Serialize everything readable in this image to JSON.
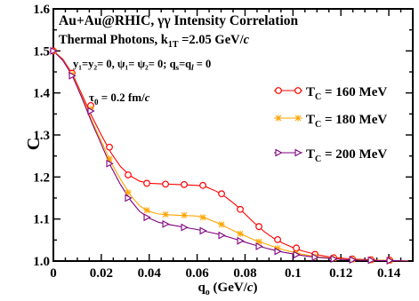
{
  "chart_data": {
    "type": "line",
    "title_lines": [
      "Au+Au@RHIC,  γγ Intensity  Correlation",
      "Thermal Photons, k",
      "1T",
      " =2.05 GeV/",
      "c"
    ],
    "annotations": {
      "rapidity": "y",
      "rapidity_text": "y₁=y₂= 0,  ψ₁= ψ₂= 0;  q",
      "rapidity_tail": "s",
      "rapidity_eq": "=q",
      "rapidity_l": "l",
      "rapidity_end": " = 0",
      "tau_prefix": "τ",
      "tau_sub": "0",
      "tau_value": " = 0.2 fm/",
      "tau_unit": "c"
    },
    "xlabel_main": "q",
    "xlabel_sub": "o",
    "xlabel_unit": " (GeV/",
    "xlabel_c": "c",
    "xlabel_close": ")",
    "ylabel": "C",
    "xlim": [
      0,
      0.15
    ],
    "ylim": [
      1.0,
      1.6
    ],
    "x_ticks": [
      {
        "value": 0,
        "label": "0"
      },
      {
        "value": 0.02,
        "label": "0.02"
      },
      {
        "value": 0.04,
        "label": "0.04"
      },
      {
        "value": 0.06,
        "label": "0.06"
      },
      {
        "value": 0.08,
        "label": "0.08"
      },
      {
        "value": 0.1,
        "label": "0.1"
      },
      {
        "value": 0.12,
        "label": "0.12"
      },
      {
        "value": 0.14,
        "label": "0.14"
      }
    ],
    "y_ticks": [
      {
        "value": 1.0,
        "label": "1.0"
      },
      {
        "value": 1.1,
        "label": "1.1"
      },
      {
        "value": 1.2,
        "label": "1.2"
      },
      {
        "value": 1.3,
        "label": "1.3"
      },
      {
        "value": 1.4,
        "label": "1.4"
      },
      {
        "value": 1.5,
        "label": "1.5"
      },
      {
        "value": 1.6,
        "label": "1.6"
      }
    ],
    "legend_placement": "right",
    "series": [
      {
        "name": "T",
        "name_sub": "C",
        "name_rest": " = 160 MeV",
        "color": "#ff0000",
        "marker": "circle",
        "x": [
          0,
          0.004,
          0.008,
          0.012,
          0.016,
          0.02,
          0.024,
          0.028,
          0.032,
          0.036,
          0.04,
          0.044,
          0.048,
          0.052,
          0.056,
          0.06,
          0.064,
          0.068,
          0.072,
          0.076,
          0.08,
          0.084,
          0.088,
          0.092,
          0.096,
          0.1,
          0.104,
          0.108,
          0.112,
          0.116,
          0.12,
          0.124,
          0.128,
          0.132,
          0.136,
          0.14,
          0.144,
          0.148
        ],
        "y": [
          1.5,
          1.48,
          1.445,
          1.395,
          1.345,
          1.3,
          1.258,
          1.225,
          1.203,
          1.19,
          1.185,
          1.184,
          1.183,
          1.182,
          1.181,
          1.18,
          1.176,
          1.166,
          1.152,
          1.134,
          1.112,
          1.09,
          1.07,
          1.054,
          1.042,
          1.032,
          1.024,
          1.018,
          1.013,
          1.009,
          1.007,
          1.005,
          1.004,
          1.003,
          1.002,
          1.001,
          1.001,
          1.001
        ],
        "marker_x": [
          0,
          0.0078,
          0.0156,
          0.0234,
          0.0312,
          0.039,
          0.0468,
          0.0546,
          0.0624,
          0.0702,
          0.078,
          0.0858,
          0.0936,
          0.1014,
          0.1092,
          0.117,
          0.1248,
          0.1326,
          0.1404
        ],
        "marker_y": [
          1.5,
          1.447,
          1.37,
          1.271,
          1.205,
          1.185,
          1.183,
          1.182,
          1.18,
          1.16,
          1.123,
          1.082,
          1.051,
          1.031,
          1.016,
          1.008,
          1.005,
          1.003,
          1.002
        ]
      },
      {
        "name": "T",
        "name_sub": "C",
        "name_rest": " = 180 MeV",
        "color": "#ffa500",
        "marker": "cross",
        "x": [
          0,
          0.004,
          0.008,
          0.012,
          0.016,
          0.02,
          0.024,
          0.028,
          0.032,
          0.036,
          0.04,
          0.044,
          0.048,
          0.052,
          0.056,
          0.06,
          0.064,
          0.068,
          0.072,
          0.076,
          0.08,
          0.084,
          0.088,
          0.092,
          0.096,
          0.1,
          0.104,
          0.108,
          0.112,
          0.116,
          0.12,
          0.124,
          0.128,
          0.132,
          0.136,
          0.14,
          0.144,
          0.148
        ],
        "y": [
          1.5,
          1.478,
          1.442,
          1.39,
          1.335,
          1.285,
          1.235,
          1.195,
          1.158,
          1.131,
          1.118,
          1.112,
          1.11,
          1.109,
          1.108,
          1.107,
          1.101,
          1.092,
          1.081,
          1.07,
          1.06,
          1.05,
          1.042,
          1.034,
          1.027,
          1.021,
          1.016,
          1.012,
          1.009,
          1.007,
          1.005,
          1.004,
          1.003,
          1.002,
          1.002,
          1.001,
          1.001,
          1.001
        ],
        "marker_x": [
          0,
          0.0078,
          0.0156,
          0.0234,
          0.0312,
          0.039,
          0.0468,
          0.0546,
          0.0624,
          0.0702,
          0.078,
          0.0858,
          0.0936,
          0.1014,
          0.1092,
          0.117,
          0.1248,
          0.1326,
          0.1404
        ],
        "marker_y": [
          1.5,
          1.444,
          1.362,
          1.243,
          1.163,
          1.121,
          1.111,
          1.109,
          1.104,
          1.087,
          1.065,
          1.046,
          1.03,
          1.019,
          1.011,
          1.006,
          1.004,
          1.002,
          1.001
        ]
      },
      {
        "name": "T",
        "name_sub": "C",
        "name_rest": " = 200 MeV",
        "color": "#800080",
        "marker": "triangle-right",
        "x": [
          0,
          0.004,
          0.008,
          0.012,
          0.016,
          0.02,
          0.024,
          0.028,
          0.032,
          0.036,
          0.04,
          0.044,
          0.048,
          0.052,
          0.056,
          0.06,
          0.064,
          0.068,
          0.072,
          0.076,
          0.08,
          0.084,
          0.088,
          0.092,
          0.096,
          0.1,
          0.104,
          0.108,
          0.112,
          0.116,
          0.12,
          0.124,
          0.128,
          0.132,
          0.136,
          0.14,
          0.144,
          0.148
        ],
        "y": [
          1.5,
          1.477,
          1.44,
          1.387,
          1.33,
          1.278,
          1.225,
          1.182,
          1.146,
          1.118,
          1.102,
          1.092,
          1.087,
          1.083,
          1.079,
          1.075,
          1.07,
          1.065,
          1.059,
          1.052,
          1.045,
          1.038,
          1.032,
          1.026,
          1.021,
          1.017,
          1.013,
          1.01,
          1.008,
          1.006,
          1.004,
          1.003,
          1.002,
          1.002,
          1.001,
          1.001,
          1.001,
          1.0
        ],
        "marker_x": [
          0,
          0.0078,
          0.0156,
          0.0234,
          0.0312,
          0.039,
          0.0468,
          0.0546,
          0.0624,
          0.0702,
          0.078,
          0.0858,
          0.0936,
          0.1014,
          0.1092,
          0.117,
          0.1248,
          0.1326,
          0.1404
        ],
        "marker_y": [
          1.5,
          1.441,
          1.357,
          1.232,
          1.15,
          1.104,
          1.088,
          1.08,
          1.072,
          1.061,
          1.048,
          1.035,
          1.023,
          1.015,
          1.009,
          1.005,
          1.003,
          1.002,
          1.001
        ]
      }
    ]
  }
}
